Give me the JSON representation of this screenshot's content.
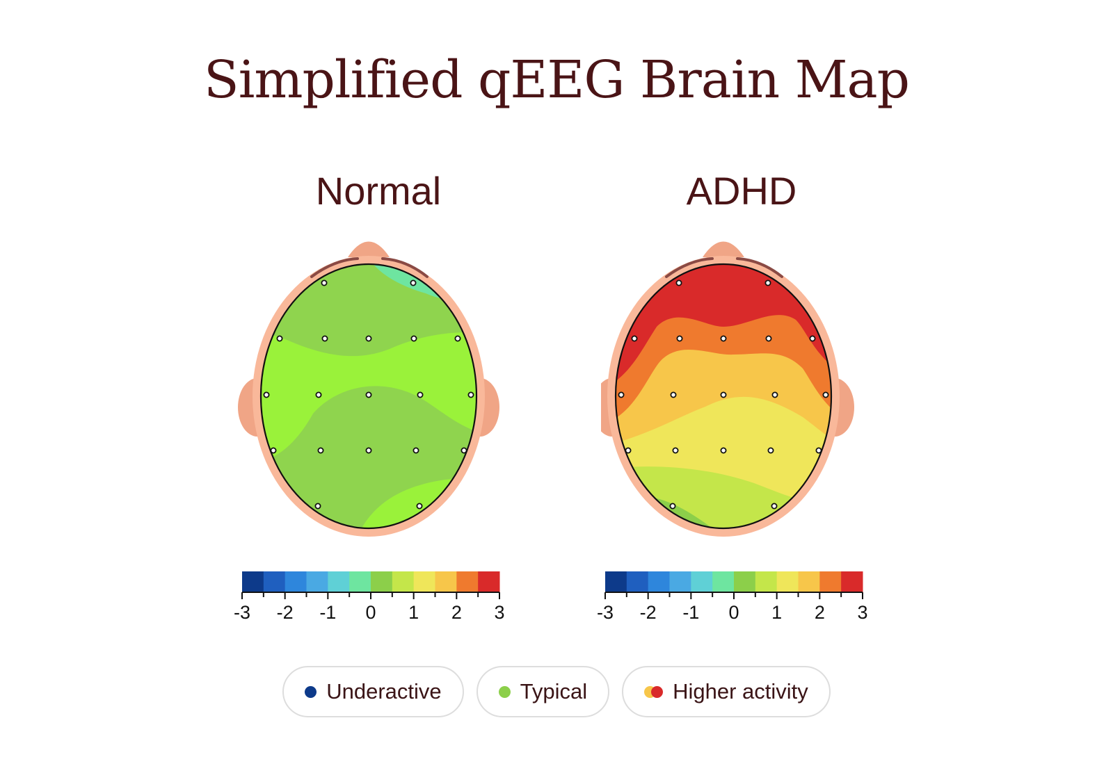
{
  "title": "Simplified qEEG Brain Map",
  "panels": {
    "normal": {
      "label": "Normal"
    },
    "adhd": {
      "label": "ADHD"
    }
  },
  "colorbar": {
    "ticks": [
      "-3",
      "-2",
      "-1",
      "0",
      "1",
      "2",
      "3"
    ],
    "colors": [
      "#0d3a8a",
      "#1f5fbf",
      "#2e86dc",
      "#4aa9e3",
      "#5fd0d6",
      "#6ee5a0",
      "#8ccf4a",
      "#c4e64a",
      "#efe65a",
      "#f7c64a",
      "#ef7a2e",
      "#d92a2a"
    ]
  },
  "legend": {
    "underactive": {
      "label": "Underactive",
      "color": "#0d3a8a"
    },
    "typical": {
      "label": "Typical",
      "color": "#8ccf4a"
    },
    "higher": {
      "label": "Higher activity",
      "colors": [
        "#f7c64a",
        "#d92a2a"
      ]
    }
  },
  "colors": {
    "title": "#4a1416",
    "skin": "#f9b89a",
    "ear": "#f0a586",
    "nose": "#f0a586"
  }
}
